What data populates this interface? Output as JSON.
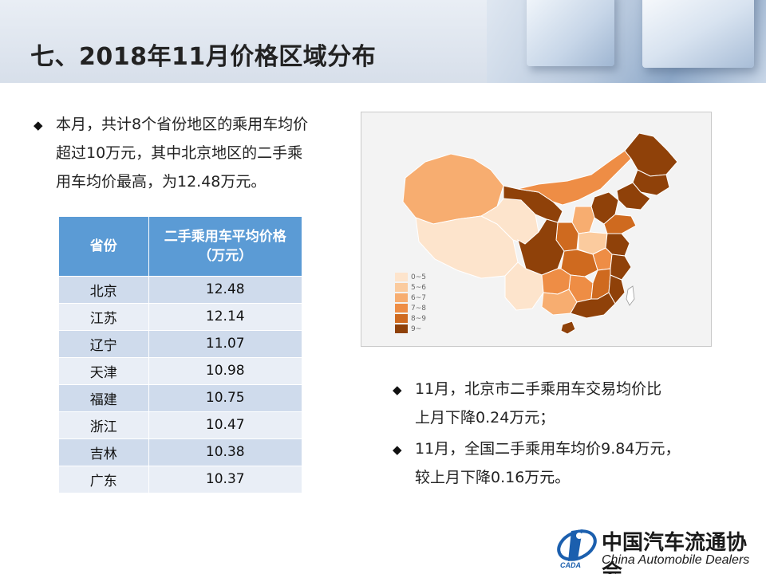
{
  "header": {
    "title": "七、2018年11月价格区域分布"
  },
  "bullets": {
    "mark": "◆",
    "b1_lines": [
      "本月，共计8个省份地区的乘用车均价",
      "超过10万元，其中北京地区的二手乘",
      "用车均价最高，为12.48万元。"
    ],
    "b2_lines": [
      "11月，北京市二手乘用车交易均价比",
      "上月下降0.24万元；"
    ],
    "b3_lines": [
      "11月，全国二手乘用车均价9.84万元，",
      "较上月下降0.16万元。"
    ]
  },
  "table": {
    "header_col1": "省份",
    "header_col2_line1": "二手乘用车平均价格",
    "header_col2_line2": "（万元）",
    "rows": [
      {
        "province": "北京",
        "price": "12.48"
      },
      {
        "province": "江苏",
        "price": "12.14"
      },
      {
        "province": "辽宁",
        "price": "11.07"
      },
      {
        "province": "天津",
        "price": "10.98"
      },
      {
        "province": "福建",
        "price": "10.75"
      },
      {
        "province": "浙江",
        "price": "10.47"
      },
      {
        "province": "吉林",
        "price": "10.38"
      },
      {
        "province": "广东",
        "price": "10.37"
      }
    ]
  },
  "map": {
    "legend": [
      {
        "label": "0~5",
        "color": "#fde4cc"
      },
      {
        "label": "5~6",
        "color": "#fbcb9e"
      },
      {
        "label": "6~7",
        "color": "#f7ad70"
      },
      {
        "label": "7~8",
        "color": "#ee8d45"
      },
      {
        "label": "8~9",
        "color": "#cf6a1f"
      },
      {
        "label": "9~",
        "color": "#8f4109"
      }
    ]
  },
  "footer": {
    "logo_cn": "中国汽车流通协会",
    "logo_en": "China Automobile Dealers",
    "logo_mark_text": "CADA"
  }
}
